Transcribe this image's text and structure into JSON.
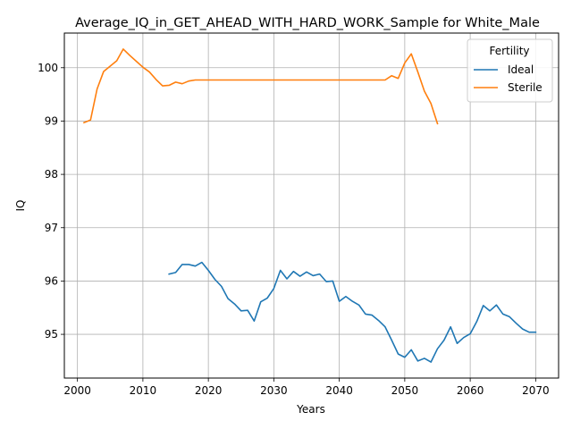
{
  "chart_data": {
    "type": "line",
    "title": "Average_IQ_in_GET_AHEAD_WITH_HARD_WORK_Sample for White_Male",
    "xlabel": "Years",
    "ylabel": "IQ",
    "xlim": [
      1998,
      2073.5
    ],
    "ylim": [
      94.18,
      100.65
    ],
    "xticks": [
      2000,
      2010,
      2020,
      2030,
      2040,
      2050,
      2060,
      2070
    ],
    "yticks": [
      95,
      96,
      97,
      98,
      99,
      100
    ],
    "grid": true,
    "legend": {
      "title": "Fertility",
      "placement": "top-right"
    },
    "series": [
      {
        "name": "Ideal",
        "color": "#1f77b4",
        "x": [
          2014,
          2015,
          2016,
          2017,
          2018,
          2019,
          2020,
          2021,
          2022,
          2023,
          2024,
          2025,
          2026,
          2027,
          2028,
          2029,
          2030,
          2031,
          2032,
          2033,
          2034,
          2035,
          2036,
          2037,
          2038,
          2039,
          2040,
          2041,
          2042,
          2043,
          2044,
          2045,
          2046,
          2047,
          2048,
          2049,
          2050,
          2051,
          2052,
          2053,
          2054,
          2055,
          2056,
          2057,
          2058,
          2059,
          2060,
          2061,
          2062,
          2063,
          2064,
          2065,
          2066,
          2067,
          2068,
          2069,
          2070
        ],
        "values": [
          96.13,
          96.16,
          96.31,
          96.31,
          96.28,
          96.35,
          96.2,
          96.03,
          95.9,
          95.67,
          95.57,
          95.44,
          95.45,
          95.25,
          95.61,
          95.68,
          95.86,
          96.2,
          96.04,
          96.18,
          96.09,
          96.17,
          96.1,
          96.13,
          95.99,
          96.0,
          95.62,
          95.71,
          95.62,
          95.55,
          95.38,
          95.36,
          95.26,
          95.14,
          94.89,
          94.63,
          94.57,
          94.71,
          94.5,
          94.55,
          94.48,
          94.73,
          94.89,
          95.14,
          94.83,
          94.94,
          95.01,
          95.24,
          95.54,
          95.44,
          95.55,
          95.38,
          95.33,
          95.21,
          95.1,
          95.04,
          95.04
        ]
      },
      {
        "name": "Sterile",
        "color": "#ff7f0e",
        "x": [
          2001,
          2002,
          2003,
          2004,
          2005,
          2006,
          2007,
          2008,
          2009,
          2010,
          2011,
          2012,
          2013,
          2014,
          2015,
          2016,
          2017,
          2018,
          2019,
          2020,
          2021,
          2022,
          2023,
          2024,
          2025,
          2026,
          2027,
          2028,
          2029,
          2030,
          2031,
          2032,
          2033,
          2034,
          2035,
          2036,
          2037,
          2038,
          2039,
          2040,
          2041,
          2042,
          2043,
          2044,
          2045,
          2046,
          2047,
          2048,
          2049,
          2050,
          2051,
          2052,
          2053,
          2054,
          2055
        ],
        "values": [
          98.97,
          99.02,
          99.6,
          99.93,
          100.03,
          100.13,
          100.35,
          100.23,
          100.12,
          100.01,
          99.92,
          99.78,
          99.66,
          99.67,
          99.73,
          99.7,
          99.75,
          99.77,
          99.77,
          99.77,
          99.77,
          99.77,
          99.77,
          99.77,
          99.77,
          99.77,
          99.77,
          99.77,
          99.77,
          99.77,
          99.77,
          99.77,
          99.77,
          99.77,
          99.77,
          99.77,
          99.77,
          99.77,
          99.77,
          99.77,
          99.77,
          99.77,
          99.77,
          99.77,
          99.77,
          99.77,
          99.77,
          99.85,
          99.8,
          100.09,
          100.26,
          99.92,
          99.56,
          99.33,
          98.95
        ]
      }
    ]
  }
}
